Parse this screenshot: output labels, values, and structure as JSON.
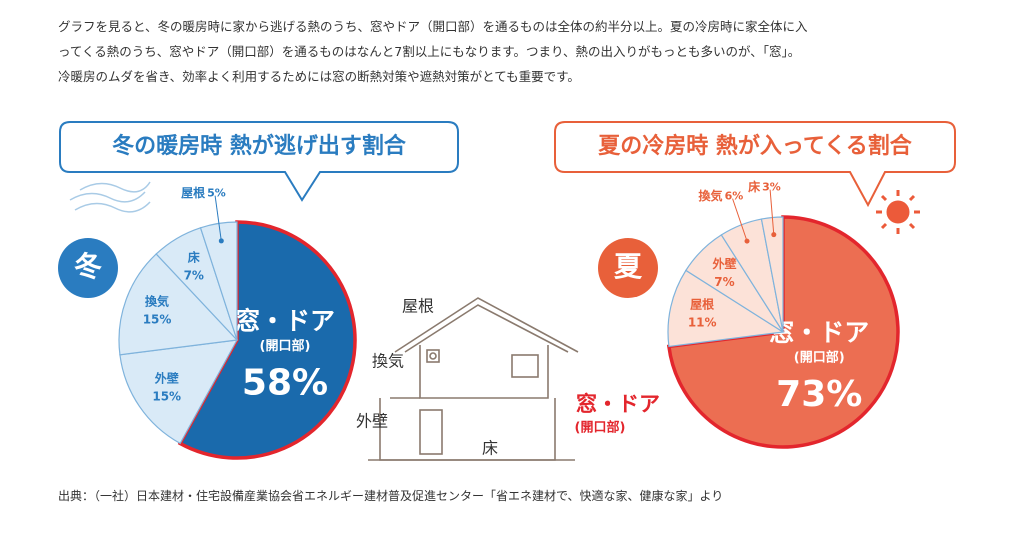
{
  "intro_lines": [
    "グラフを見ると、冬の暖房時に家から逃げる熱のうち、窓やドア（開口部）を通るものは全体の約半分以上。夏の冷房時に家全体に入",
    "ってくる熱のうち、窓やドア（開口部）を通るものはなんと7割以上にもなります。つまり、熱の出入りがもっとも多いのが、「窓」。",
    "冷暖房のムダを省き、効率よく利用するためには窓の断熱対策や遮熱対策がとても重要です。"
  ],
  "chart_data": [
    {
      "type": "pie",
      "title": "冬の暖房時 熱が逃げ出す割合",
      "badge": "冬",
      "accent": "#2a7cc0",
      "categories": [
        "窓・ドア",
        "外壁",
        "換気",
        "床",
        "屋根"
      ],
      "highlight_note": "(開口部)",
      "values": [
        58,
        15,
        15,
        7,
        5
      ],
      "value_labels": [
        "58%",
        "15%",
        "15%",
        "7%",
        "5%"
      ],
      "colors": [
        "#1a6aac",
        "#d9eaf7",
        "#d9eaf7",
        "#d9eaf7",
        "#d9eaf7"
      ],
      "outline_color": "#e3262d"
    },
    {
      "type": "pie",
      "title": "夏の冷房時 熱が入ってくる割合",
      "badge": "夏",
      "accent": "#e8603a",
      "categories": [
        "窓・ドア",
        "屋根",
        "外壁",
        "換気",
        "床"
      ],
      "highlight_note": "(開口部)",
      "values": [
        73,
        11,
        7,
        6,
        3
      ],
      "value_labels": [
        "73%",
        "11%",
        "7%",
        "6%",
        "3%"
      ],
      "colors": [
        "#ec6e52",
        "#fce2d8",
        "#fce2d8",
        "#fce2d8",
        "#fce2d8"
      ],
      "outline_color": "#e3262d"
    }
  ],
  "house": {
    "roof": "屋根",
    "vent": "換気",
    "wall": "外壁",
    "floor": "床",
    "window": "窓・ドア",
    "window_note": "(開口部)"
  },
  "source": "出典：（一社）日本建材・住宅設備産業協会省エネルギー建材普及促進センター「省エネ建材で、快適な家、健康な家」より"
}
